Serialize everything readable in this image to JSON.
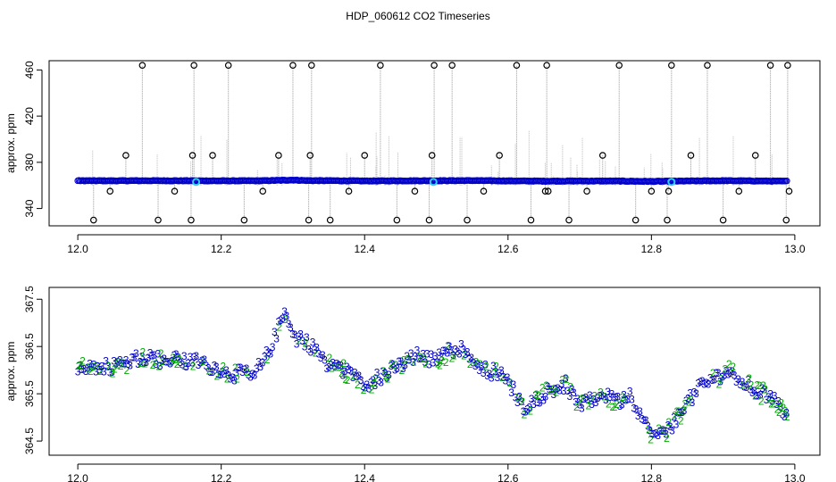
{
  "title": "HDP_060612  CO2 Timeseries",
  "chart_data": [
    {
      "type": "scatter",
      "ylabel": "approx. ppm",
      "xlim": [
        11.96,
        13.035
      ],
      "ylim": [
        325,
        468
      ],
      "xticks": [
        "12.0",
        "12.2",
        "12.4",
        "12.6",
        "12.8",
        "13.0"
      ],
      "yticks": [
        "340",
        "380",
        "420",
        "460"
      ],
      "colors": {
        "main": "#0000cc",
        "outlier": "#000000",
        "highlight": "#33ccff",
        "spike": "#999999"
      },
      "baseline": [
        [
          12.0,
          366.2
        ],
        [
          12.05,
          366.0
        ],
        [
          12.1,
          366.3
        ],
        [
          12.15,
          366.1
        ],
        [
          12.2,
          365.9
        ],
        [
          12.25,
          366.0
        ],
        [
          12.28,
          367.0
        ],
        [
          12.3,
          368.0
        ],
        [
          12.32,
          366.5
        ],
        [
          12.35,
          366.3
        ],
        [
          12.4,
          365.6
        ],
        [
          12.45,
          366.0
        ],
        [
          12.5,
          366.2
        ],
        [
          12.55,
          366.5
        ],
        [
          12.6,
          365.8
        ],
        [
          12.65,
          365.2
        ],
        [
          12.7,
          365.5
        ],
        [
          12.75,
          365.4
        ],
        [
          12.8,
          364.5
        ],
        [
          12.85,
          365.5
        ],
        [
          12.9,
          366.2
        ],
        [
          12.95,
          365.6
        ],
        [
          12.99,
          365.0
        ]
      ],
      "outliers": {
        "x": [
          12.022,
          12.045,
          12.067,
          12.09,
          12.112,
          12.135,
          12.158,
          12.16,
          12.162,
          12.188,
          12.21,
          12.232,
          12.258,
          12.28,
          12.3,
          12.322,
          12.324,
          12.326,
          12.352,
          12.378,
          12.4,
          12.422,
          12.445,
          12.47,
          12.49,
          12.494,
          12.497,
          12.522,
          12.543,
          12.566,
          12.588,
          12.612,
          12.632,
          12.652,
          12.654,
          12.656,
          12.685,
          12.71,
          12.732,
          12.755,
          12.778,
          12.8,
          12.822,
          12.824,
          12.828,
          12.855,
          12.878,
          12.9,
          12.922,
          12.945,
          12.966,
          12.988,
          12.99,
          12.992
        ],
        "y": [
          330,
          355,
          386,
          464,
          330,
          355,
          330,
          386,
          464,
          386,
          464,
          330,
          355,
          386,
          464,
          330,
          386,
          464,
          330,
          355,
          386,
          464,
          330,
          355,
          330,
          386,
          464,
          464,
          330,
          355,
          386,
          464,
          330,
          355,
          464,
          355,
          330,
          355,
          386,
          464,
          330,
          355,
          330,
          355,
          464,
          386,
          464,
          330,
          355,
          386,
          464,
          330,
          464,
          355
        ]
      },
      "highlights": {
        "x": [
          12.165,
          12.496,
          12.828
        ],
        "y": [
          363,
          363,
          363
        ]
      }
    },
    {
      "type": "scatter",
      "ylabel": "approx. ppm",
      "xlim": [
        11.96,
        13.035
      ],
      "ylim": [
        364.2,
        367.75
      ],
      "xticks": [
        "12.0",
        "12.2",
        "12.4",
        "12.6",
        "12.8",
        "13.0"
      ],
      "yticks": [
        "364.5",
        "365.5",
        "366.5",
        "367.5"
      ],
      "marker_labels": [
        "3",
        "2"
      ],
      "colors": {
        "series3": "#0000cc",
        "series2": "#00aa00"
      },
      "anchors": [
        [
          12.0,
          366.1
        ],
        [
          12.03,
          366.05
        ],
        [
          12.06,
          366.1
        ],
        [
          12.09,
          366.3
        ],
        [
          12.12,
          366.2
        ],
        [
          12.165,
          366.2
        ],
        [
          12.19,
          366.05
        ],
        [
          12.22,
          365.9
        ],
        [
          12.25,
          366.0
        ],
        [
          12.27,
          366.5
        ],
        [
          12.29,
          367.3
        ],
        [
          12.3,
          366.7
        ],
        [
          12.32,
          366.6
        ],
        [
          12.35,
          366.1
        ],
        [
          12.37,
          366.0
        ],
        [
          12.4,
          365.7
        ],
        [
          12.43,
          365.9
        ],
        [
          12.47,
          366.3
        ],
        [
          12.5,
          366.2
        ],
        [
          12.53,
          366.5
        ],
        [
          12.56,
          366.1
        ],
        [
          12.6,
          365.8
        ],
        [
          12.62,
          365.2
        ],
        [
          12.64,
          365.4
        ],
        [
          12.66,
          365.6
        ],
        [
          12.68,
          365.7
        ],
        [
          12.7,
          365.2
        ],
        [
          12.73,
          365.5
        ],
        [
          12.75,
          365.3
        ],
        [
          12.77,
          365.5
        ],
        [
          12.8,
          364.6
        ],
        [
          12.82,
          364.65
        ],
        [
          12.84,
          365.1
        ],
        [
          12.87,
          365.7
        ],
        [
          12.91,
          366.0
        ],
        [
          12.94,
          365.6
        ],
        [
          12.97,
          365.4
        ],
        [
          12.99,
          364.95
        ]
      ]
    }
  ]
}
